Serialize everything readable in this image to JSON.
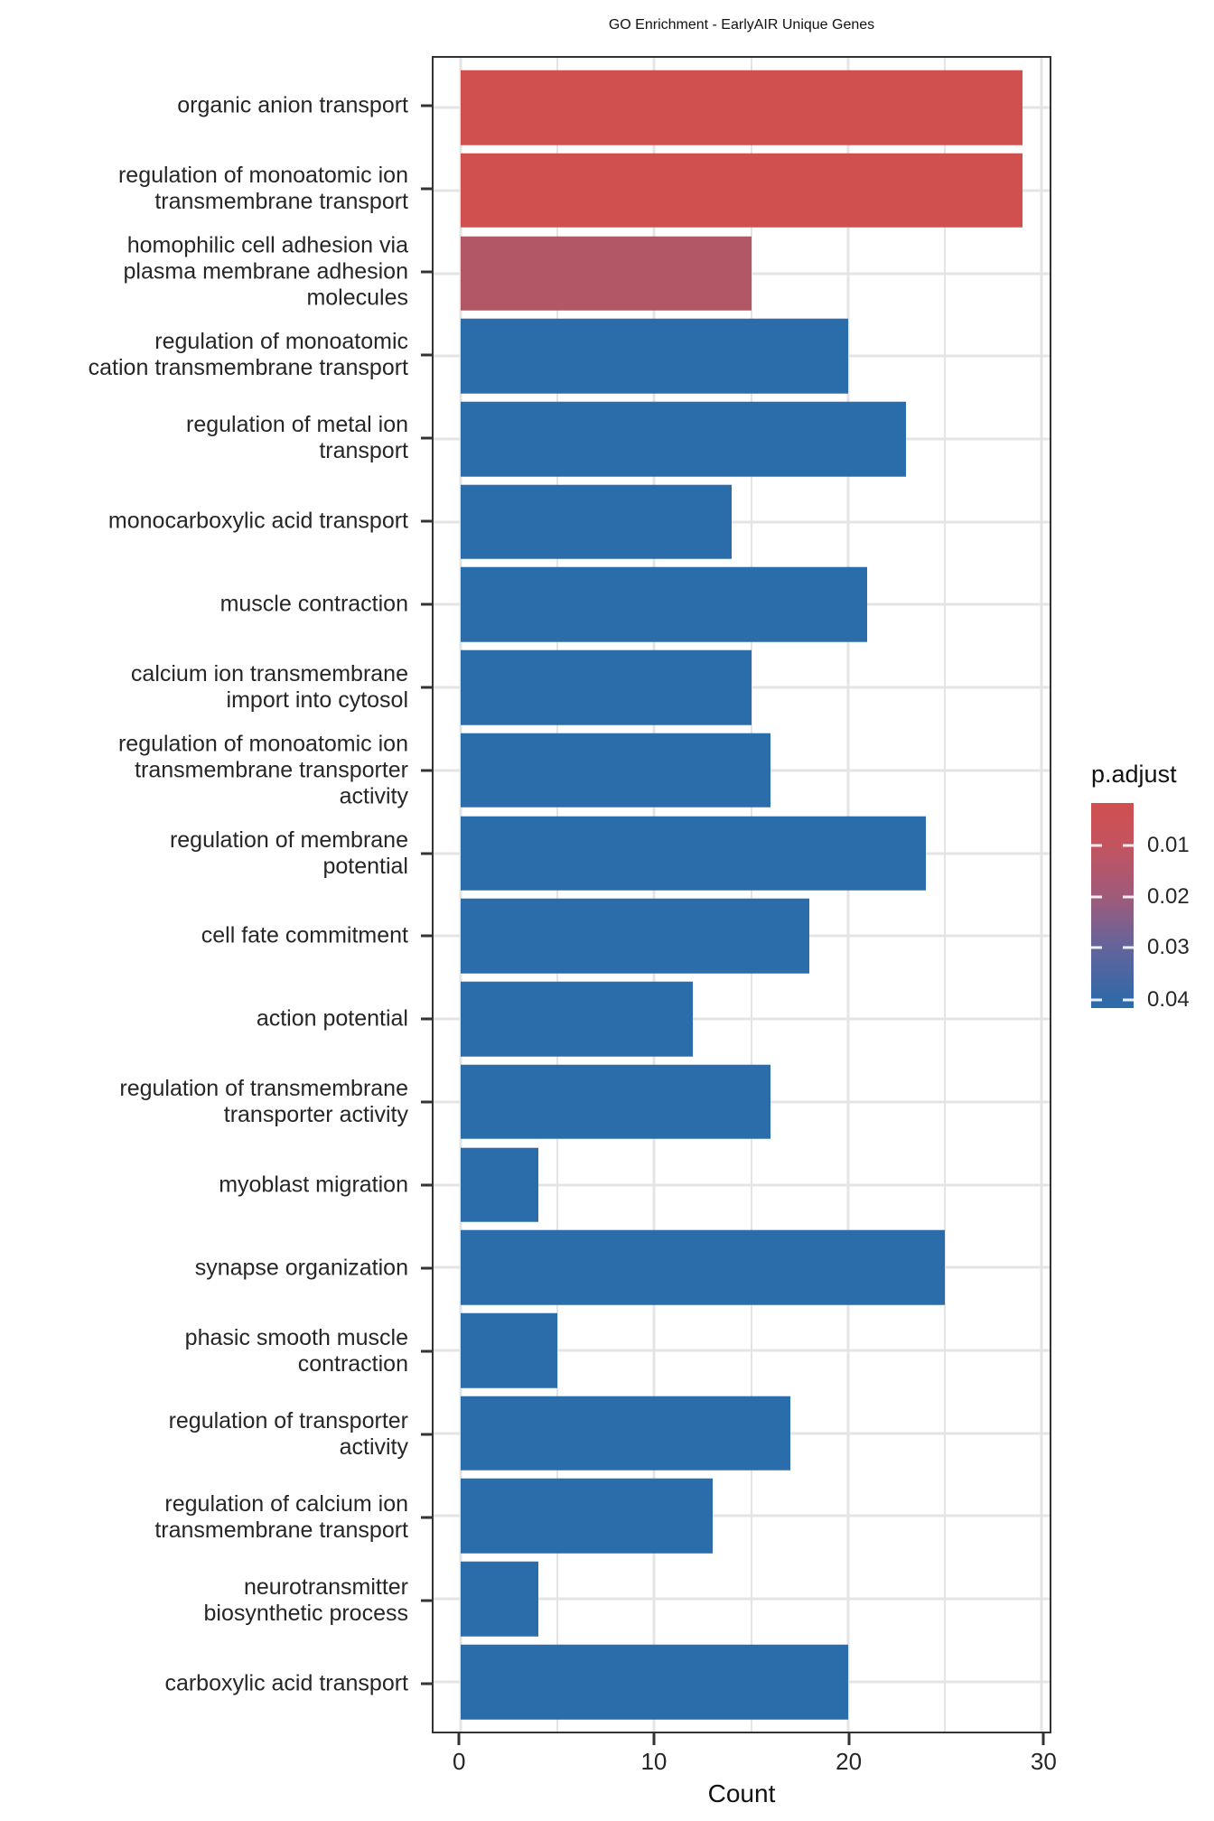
{
  "title": "GO Enrichment - EarlyAIR Unique Genes",
  "chart_data": {
    "type": "bar",
    "orientation": "horizontal",
    "title": "GO Enrichment - EarlyAIR Unique Genes",
    "xlabel": "Count",
    "ylabel": "",
    "xlim": [
      -1.4,
      30.4
    ],
    "x_major_ticks": [
      0,
      10,
      20,
      30
    ],
    "x_minor_ticks": [
      5,
      15,
      25
    ],
    "grid": true,
    "categories": [
      "organic anion transport",
      "regulation of monoatomic ion\ntransmembrane transport",
      "homophilic cell adhesion via\nplasma membrane adhesion\nmolecules",
      "regulation of monoatomic\ncation transmembrane transport",
      "regulation of metal ion\ntransport",
      "monocarboxylic acid transport",
      "muscle contraction",
      "calcium ion transmembrane\nimport into cytosol",
      "regulation of monoatomic ion\ntransmembrane transporter\nactivity",
      "regulation of membrane\npotential",
      "cell fate commitment",
      "action potential",
      "regulation of transmembrane\ntransporter activity",
      "myoblast migration",
      "synapse organization",
      "phasic smooth muscle\ncontraction",
      "regulation of transporter\nactivity",
      "regulation of calcium ion\ntransmembrane transport",
      "neurotransmitter\nbiosynthetic process",
      "carboxylic acid transport"
    ],
    "values": [
      29,
      29,
      15,
      20,
      23,
      14,
      21,
      15,
      16,
      24,
      18,
      12,
      16,
      4,
      25,
      5,
      17,
      13,
      4,
      20
    ],
    "bar_colors": [
      "#D0504E",
      "#D0504E",
      "#B25765",
      "#2B6CAA",
      "#2B6CAA",
      "#2B6CAA",
      "#2B6CAA",
      "#2B6CAA",
      "#2B6CAA",
      "#2B6CAA",
      "#2B6CAA",
      "#2B6CAA",
      "#2B6CAA",
      "#2B6CAA",
      "#2B6CAA",
      "#2B6CAA",
      "#2B6CAA",
      "#2B6CAA",
      "#2B6CAA",
      "#2B6CAA"
    ],
    "category_expand": 0.6,
    "bar_width_frac": 0.9,
    "legend": {
      "title": "p.adjust",
      "position": "right",
      "ticks": [
        "0.01",
        "0.02",
        "0.03",
        "0.04"
      ],
      "tick_pcts": [
        20.7,
        45.8,
        70.5,
        96.0
      ],
      "gradient": [
        {
          "pct": 0,
          "color": "#D0504E"
        },
        {
          "pct": 21,
          "color": "#C25460"
        },
        {
          "pct": 46,
          "color": "#9F5A7B"
        },
        {
          "pct": 70,
          "color": "#64649B"
        },
        {
          "pct": 96,
          "color": "#3169A8"
        },
        {
          "pct": 100,
          "color": "#2B6CAA"
        }
      ]
    },
    "colors": {
      "low_p_red": "#D0504E",
      "mid_p_rose": "#B25765",
      "high_p_blue": "#2B6CAA",
      "gridline": "#E4E4E4",
      "panel_border": "#333333"
    }
  }
}
